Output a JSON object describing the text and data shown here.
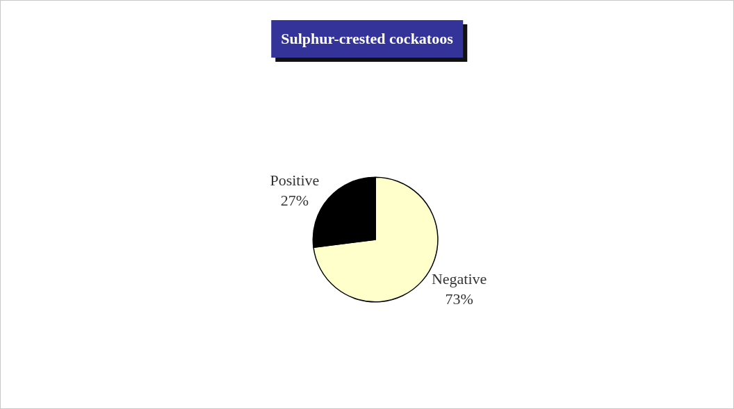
{
  "chart_data": {
    "type": "pie",
    "title": "Sulphur-crested cockatoos",
    "categories": [
      "Negative",
      "Positive"
    ],
    "values": [
      73,
      27
    ],
    "value_labels": [
      "73%",
      "27%"
    ],
    "colors": [
      "#ffffcc",
      "#000000"
    ],
    "legend": false
  }
}
